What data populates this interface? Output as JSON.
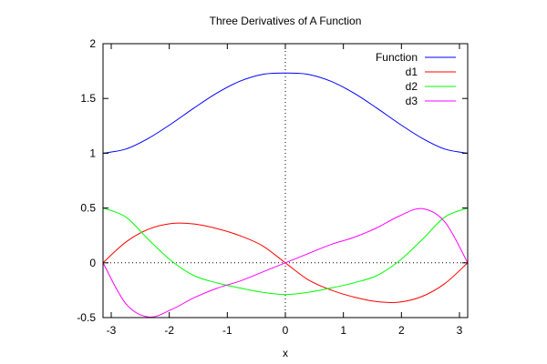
{
  "chart_data": {
    "type": "line",
    "title": "Three Derivatives of A Function",
    "xlabel": "x",
    "ylabel": "",
    "xlim": [
      -3.14159,
      3.14159
    ],
    "ylim": [
      -0.5,
      2
    ],
    "x_ticks": [
      -3,
      -2,
      -1,
      0,
      1,
      2,
      3
    ],
    "x_tick_labels": [
      "-3",
      "-2",
      "-1",
      "0",
      "1",
      "2",
      "3"
    ],
    "y_ticks": [
      -0.5,
      0,
      0.5,
      1,
      1.5,
      2
    ],
    "y_tick_labels": [
      "-0.5",
      "0",
      "0.5",
      "1",
      "1.5",
      "2"
    ],
    "zero_axes": "dotted",
    "grid": false,
    "legend_position": "top-right",
    "series": [
      {
        "name": "Function",
        "color": "#0000ff",
        "x": [
          -3.1416,
          -2.7489,
          -2.3562,
          -1.9635,
          -1.5708,
          -1.1781,
          -0.7854,
          -0.3927,
          0,
          0.3927,
          0.7854,
          1.1781,
          1.5708,
          1.9635,
          2.3562,
          2.7489,
          3.1416
        ],
        "y": [
          1.0,
          1.038,
          1.137,
          1.269,
          1.414,
          1.55,
          1.657,
          1.72,
          1.732,
          1.72,
          1.657,
          1.55,
          1.414,
          1.269,
          1.137,
          1.038,
          1.0
        ]
      },
      {
        "name": "d1",
        "color": "#ff0000",
        "x": [
          -3.1416,
          -2.7489,
          -2.3562,
          -1.9635,
          -1.5708,
          -1.1781,
          -0.7854,
          -0.3927,
          0,
          0.3927,
          0.7854,
          1.1781,
          1.5708,
          1.9635,
          2.3562,
          2.7489,
          3.1416
        ],
        "y": [
          0,
          0.189,
          0.307,
          0.359,
          0.354,
          0.312,
          0.248,
          0.155,
          0,
          -0.155,
          -0.248,
          -0.312,
          -0.354,
          -0.359,
          -0.307,
          -0.189,
          0
        ]
      },
      {
        "name": "d2",
        "color": "#00ff00",
        "x": [
          -3.1416,
          -2.7489,
          -2.3562,
          -1.9635,
          -1.5708,
          -1.1781,
          -0.7854,
          -0.3927,
          0,
          0.3927,
          0.7854,
          1.1781,
          1.5708,
          1.9635,
          2.3562,
          2.7489,
          3.1416
        ],
        "y": [
          0.5,
          0.418,
          0.211,
          0.018,
          -0.118,
          -0.183,
          -0.23,
          -0.269,
          -0.289,
          -0.269,
          -0.23,
          -0.183,
          -0.118,
          0.018,
          0.211,
          0.418,
          0.5
        ]
      },
      {
        "name": "d3",
        "color": "#ff00ff",
        "x": [
          -3.1416,
          -2.7489,
          -2.3562,
          -1.9635,
          -1.5708,
          -1.1781,
          -0.7854,
          -0.3927,
          0,
          0.3927,
          0.7854,
          1.1781,
          1.5708,
          1.9635,
          2.3562,
          2.7489,
          3.1416
        ],
        "y": [
          0,
          -0.373,
          -0.495,
          -0.427,
          -0.318,
          -0.232,
          -0.167,
          -0.084,
          0,
          0.084,
          0.167,
          0.232,
          0.318,
          0.427,
          0.495,
          0.373,
          0
        ]
      }
    ]
  }
}
